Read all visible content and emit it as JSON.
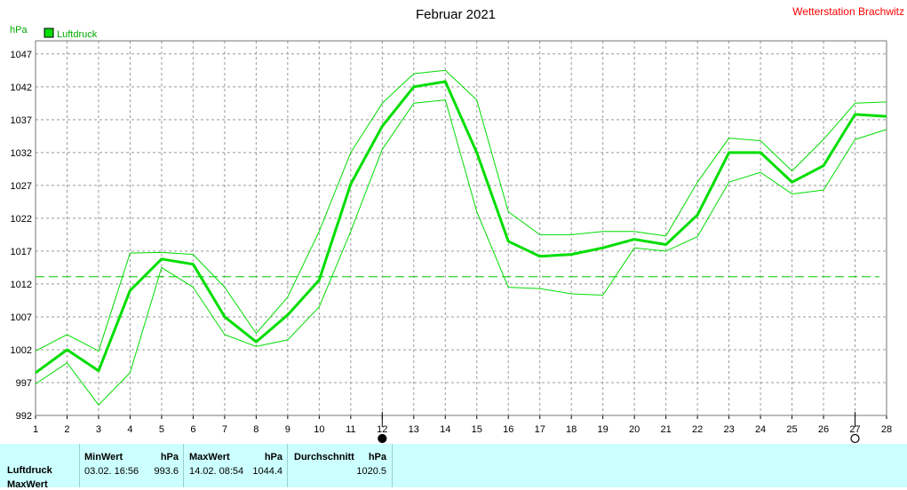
{
  "chart_data": {
    "type": "line",
    "title": "Februar 2021",
    "station": "Wetterstation Brachwitz",
    "ylabel": "hPa",
    "legend": "Luftdruck",
    "legend_position": "top-left",
    "ylim": [
      992,
      1049
    ],
    "yticks": [
      992,
      997,
      1002,
      1007,
      1012,
      1017,
      1022,
      1027,
      1032,
      1037,
      1042,
      1047
    ],
    "x": [
      1,
      2,
      3,
      4,
      5,
      6,
      7,
      8,
      9,
      10,
      11,
      12,
      13,
      14,
      15,
      16,
      17,
      18,
      19,
      20,
      21,
      22,
      23,
      24,
      25,
      26,
      27,
      28
    ],
    "xlim": [
      1,
      28
    ],
    "grid": true,
    "series": [
      {
        "name": "Luftdruck",
        "role": "mean",
        "values": [
          998.5,
          1002,
          998.8,
          1011,
          1015.8,
          1015,
          1007,
          1003.2,
          1007.3,
          1012.6,
          1027.2,
          1036,
          1042,
          1042.8,
          1032,
          1018.5,
          1016.2,
          1016.5,
          1017.5,
          1018.8,
          1018,
          1022.5,
          1032,
          1032,
          1027.5,
          1030,
          1037.8,
          1037.5
        ]
      },
      {
        "role": "max",
        "values": [
          1001.8,
          1004.3,
          1001.8,
          1016.7,
          1016.8,
          1016.5,
          1011.5,
          1004.5,
          1010,
          1020,
          1032,
          1039.5,
          1044,
          1044.5,
          1040,
          1023,
          1019.5,
          1019.5,
          1020,
          1020,
          1019.3,
          1027.5,
          1034.2,
          1033.8,
          1029.2,
          1034,
          1039.5,
          1039.7
        ]
      },
      {
        "role": "min",
        "values": [
          996.8,
          1000,
          993.6,
          998.5,
          1014.5,
          1011.5,
          1004.3,
          1002.5,
          1003.5,
          1008.5,
          1020,
          1032.5,
          1039.5,
          1040,
          1023,
          1011.5,
          1011.3,
          1010.5,
          1010.3,
          1017.5,
          1017,
          1019.2,
          1027.5,
          1029,
          1025.7,
          1026.3,
          1034,
          1035.5
        ]
      }
    ],
    "average_line": 1013.1,
    "markers": [
      {
        "day": 12,
        "symbol": "full-moon-icon"
      },
      {
        "day": 27,
        "symbol": "new-moon-icon"
      }
    ],
    "colors": {
      "line": "#00dd00",
      "average": "#00cc00",
      "title_station": "#ff0000",
      "grid": "#999999",
      "panel": "#ccffff"
    }
  },
  "stats": {
    "row_label": "Luftdruck",
    "row_label2": "MaxWert",
    "min_header": "MinWert",
    "min_unit": "hPa",
    "min_time": "03.02.  16:56",
    "min_value": "993.6",
    "max_header": "MaxWert",
    "max_unit": "hPa",
    "max_time": "14.02.  08:54",
    "max_value": "1044.4",
    "avg_header": "Durchschnitt",
    "avg_unit": "hPa",
    "avg_value": "1020.5"
  }
}
